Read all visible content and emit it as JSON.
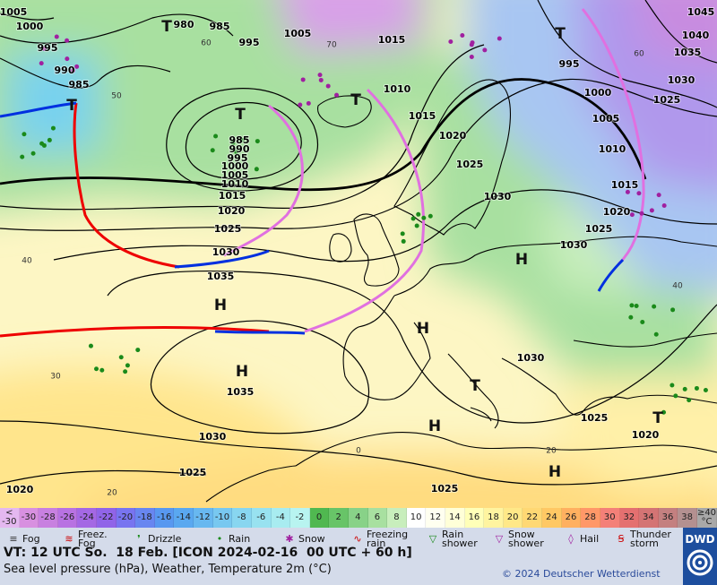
{
  "map": {
    "isobar_labels": [
      1005,
      1000,
      995,
      990,
      985,
      980,
      985,
      995,
      1005,
      1015,
      1010,
      1015,
      1020,
      1025,
      1030,
      1030,
      1025,
      1020,
      1015,
      1010,
      1005,
      1000,
      995,
      1030,
      1025,
      1035,
      1040,
      1045,
      985,
      990,
      995,
      1000,
      1005,
      1010,
      1015,
      1020,
      1025,
      1030,
      1035,
      1035,
      1030,
      1025,
      1020,
      1025,
      1030,
      1025,
      1020
    ],
    "grid_labels": [
      50,
      60,
      70,
      40,
      30,
      20,
      0,
      20,
      40,
      60
    ],
    "pressure_centers": [
      "H",
      "H",
      "H",
      "H",
      "H",
      "H",
      "T",
      "T",
      "T",
      "T",
      "T",
      "T",
      "T"
    ]
  },
  "color_scale": {
    "labels": [
      "<\n-30",
      "-30",
      "-28",
      "-26",
      "-24",
      "-22",
      "-20",
      "-18",
      "-16",
      "-14",
      "-12",
      "-10",
      "-8",
      "-6",
      "-4",
      "-2",
      "0",
      "2",
      "4",
      "6",
      "8",
      "10",
      "12",
      "14",
      "16",
      "18",
      "20",
      "22",
      "24",
      "26",
      "28",
      "30",
      "32",
      "34",
      "36",
      "38",
      "≥40\n°C"
    ],
    "colors": [
      "#e4b8f0",
      "#d890e0",
      "#c880e0",
      "#b872e2",
      "#a468e4",
      "#9064e8",
      "#7874f0",
      "#6886f0",
      "#5898f0",
      "#5aa8f0",
      "#68b8f0",
      "#78c8f0",
      "#88d6f0",
      "#98e2f0",
      "#a8ecf0",
      "#b8f4f0",
      "#50b850",
      "#68c468",
      "#88d288",
      "#a8e0a0",
      "#c8eebc",
      "#ffffff",
      "#fffff0",
      "#ffffd8",
      "#ffffb8",
      "#fff4a0",
      "#ffe888",
      "#ffd874",
      "#ffc864",
      "#ffb060",
      "#ff9868",
      "#f48078",
      "#e47070",
      "#d47474",
      "#c48080",
      "#b49090",
      "#a8a8a8"
    ]
  },
  "legend": [
    "Fog",
    "Freez.\nFog",
    "Drizzle",
    "Rain",
    "Snow",
    "Freezing\nrain",
    "Rain\nshower",
    "Snow\nshower",
    "Hail",
    "Thunder\nstorm"
  ],
  "footer": {
    "valid_time": "VT: 12 UTC So.  18 Feb. [ICON 2024-02-16  00 UTC + 60 h]",
    "description": "Sea level pressure (hPa), Weather, Temperature 2m (°C)",
    "copyright": "© 2024 Deutscher Wetterdienst",
    "logo": "DWD"
  }
}
